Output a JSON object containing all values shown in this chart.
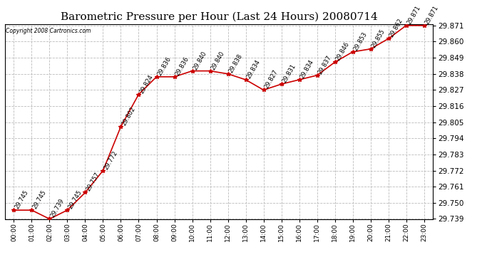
{
  "title": "Barometric Pressure per Hour (Last 24 Hours) 20080714",
  "copyright": "Copyright 2008 Cartronics.com",
  "hours": [
    "00:00",
    "01:00",
    "02:00",
    "03:00",
    "04:00",
    "05:00",
    "06:00",
    "07:00",
    "08:00",
    "09:00",
    "10:00",
    "11:00",
    "12:00",
    "13:00",
    "14:00",
    "15:00",
    "16:00",
    "17:00",
    "18:00",
    "19:00",
    "20:00",
    "21:00",
    "22:00",
    "23:00"
  ],
  "values": [
    29.745,
    29.745,
    29.739,
    29.745,
    29.757,
    29.772,
    29.802,
    29.824,
    29.836,
    29.836,
    29.84,
    29.84,
    29.838,
    29.834,
    29.827,
    29.831,
    29.834,
    29.837,
    29.846,
    29.853,
    29.855,
    29.862,
    29.871,
    29.871
  ],
  "line_color": "#cc0000",
  "marker_color": "#cc0000",
  "bg_color": "#ffffff",
  "grid_color": "#bbbbbb",
  "ylim_min": 29.739,
  "ylim_max": 29.871,
  "ytick_step": 0.011,
  "title_fontsize": 11,
  "annotation_fontsize": 6,
  "xtick_fontsize": 6.5,
  "ytick_fontsize": 7.5,
  "copyright_fontsize": 5.5,
  "border_color": "#000000"
}
